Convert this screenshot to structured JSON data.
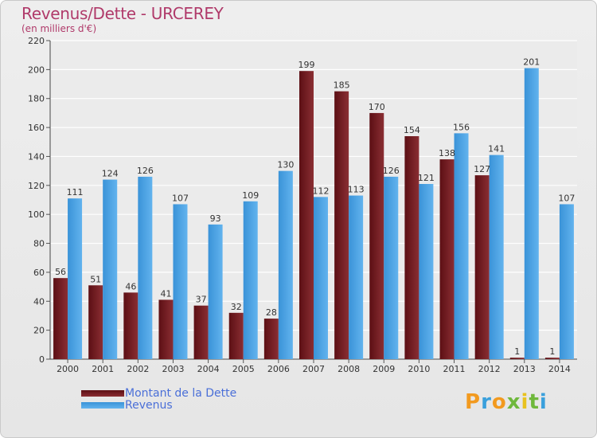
{
  "title": "Revenus/Dette - URCEREY",
  "subtitle": "(en milliers d'€)",
  "colors": {
    "debt": "#7a1f24",
    "revenue": "#4da3e4",
    "title": "#b03a6a",
    "legend_text": "#4a6fd8"
  },
  "legend": {
    "debt_label": "Montant de la Dette",
    "revenue_label": "Revenus"
  },
  "logo": {
    "text": "Proxiti"
  },
  "chart_data": {
    "type": "bar",
    "title": "Revenus/Dette - URCEREY",
    "ylabel": "(en milliers d'€)",
    "categories": [
      "2000",
      "2001",
      "2002",
      "2003",
      "2004",
      "2005",
      "2006",
      "2007",
      "2008",
      "2009",
      "2010",
      "2011",
      "2012",
      "2013",
      "2014"
    ],
    "series": [
      {
        "name": "Montant de la Dette",
        "values": [
          56,
          51,
          46,
          41,
          37,
          32,
          28,
          199,
          185,
          170,
          154,
          138,
          127,
          1,
          1
        ]
      },
      {
        "name": "Revenus",
        "values": [
          111,
          124,
          126,
          107,
          93,
          109,
          130,
          112,
          113,
          126,
          121,
          156,
          141,
          201,
          107
        ]
      }
    ],
    "ylim": [
      0,
      220
    ],
    "yticks": [
      0,
      20,
      40,
      60,
      80,
      100,
      120,
      140,
      160,
      180,
      200,
      220
    ],
    "grid": true,
    "legend_position": "bottom-left"
  }
}
